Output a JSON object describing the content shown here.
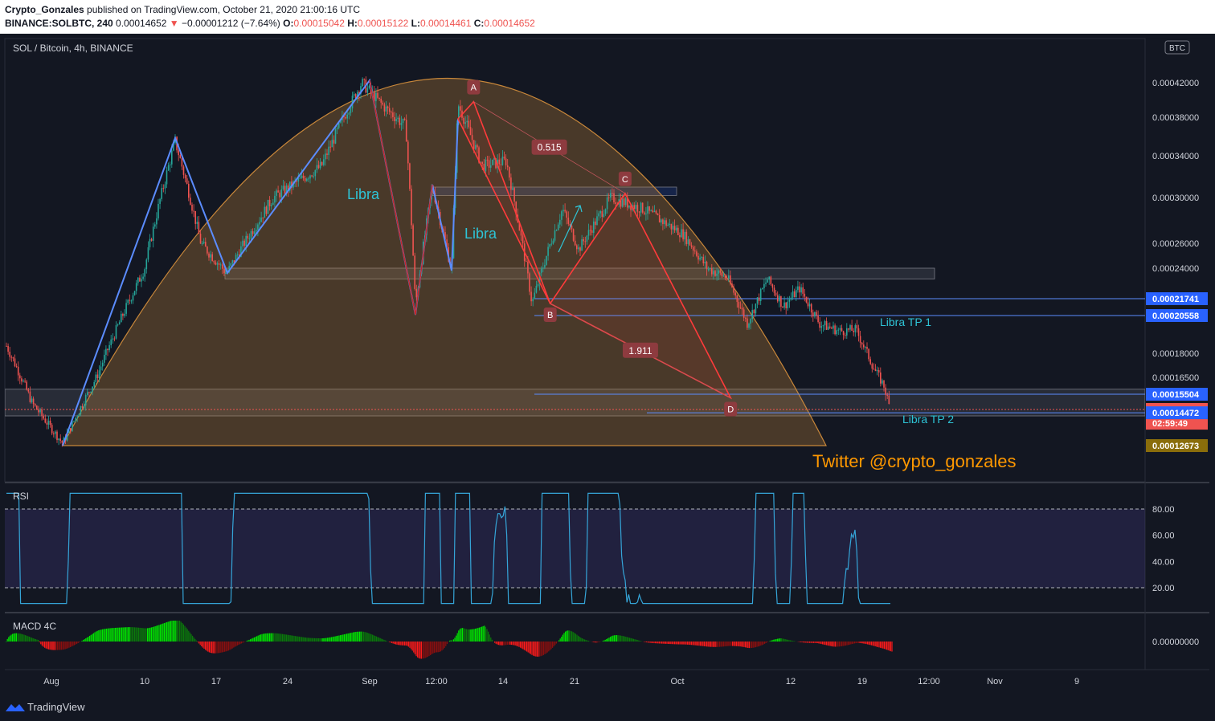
{
  "header": {
    "author": "Crypto_Gonzales",
    "published": "published on TradingView.com, October 21, 2020 21:00:16 UTC",
    "symbol": "BINANCE:SOLBTC, 240",
    "last": "0.00014652",
    "change_arrow": "▼",
    "change": "−0.00001212 (−7.64%)",
    "o_label": "O:",
    "o_value": "0.00015042",
    "h_label": "H:",
    "h_value": "0.00015122",
    "l_label": "L:",
    "l_value": "0.00014461",
    "c_label": "C:",
    "c_value": "0.00014652"
  },
  "footer": {
    "brand": "TradingView"
  },
  "colors": {
    "bg": "#131722",
    "up": "#26a69a",
    "down": "#ef5350",
    "pattern": "#5b8cff",
    "bat": "#ff3b3b",
    "arc": "#c8873a",
    "accent_text": "#2ec4d6"
  },
  "chart_data": {
    "type": "candlestick",
    "pane_title": "SOL / Bitcoin, 4h, BINANCE",
    "currency_badge": "BTC",
    "x_ticks": [
      "Aug",
      "10",
      "17",
      "24",
      "Sep",
      "12:00",
      "14",
      "21",
      "Oct",
      "12",
      "19",
      "12:00",
      "Nov",
      "9"
    ],
    "y_ticks": [
      "0.00042000",
      "0.00038000",
      "0.00034000",
      "0.00030000",
      "0.00026000",
      "0.00024000",
      "0.00018000",
      "0.00016500"
    ],
    "y_range": [
      0.000126,
      0.000462
    ],
    "price_labels": [
      {
        "text": "0.00021741",
        "price": 0.00021741,
        "kind": "blue"
      },
      {
        "text": "0.00020558",
        "price": 0.00020558,
        "kind": "blue"
      },
      {
        "text": "0.00015504",
        "price": 0.00015504,
        "kind": "blue"
      },
      {
        "text": "0.00014652",
        "price": 0.00014652,
        "kind": "red"
      },
      {
        "text": "02:59:49",
        "price": 0.000139,
        "kind": "red"
      },
      {
        "text": "0.00014472",
        "price": 0.00014472,
        "kind": "blue"
      },
      {
        "text": "0.00012673",
        "price": 0.00012673,
        "kind": "gold"
      }
    ],
    "pattern_points": [
      {
        "label": "A",
        "date": "2020-09-11 08:00",
        "price": 0.000398
      },
      {
        "label": "B",
        "date": "2020-09-18 20:00",
        "price": 0.000214
      },
      {
        "label": "C",
        "date": "2020-09-26 04:00",
        "price": 0.000304
      },
      {
        "label": "D",
        "date": "2020-10-06 12:00",
        "price": 0.000153
      }
    ],
    "fib_ratios": [
      {
        "text": "0.515",
        "between": "AC"
      },
      {
        "text": "1.911",
        "between": "BD"
      }
    ],
    "text_annotations": [
      "Libra",
      "Libra",
      "Libra TP 1",
      "Libra TP 2",
      "Twitter  @crypto_gonzales"
    ],
    "support_zones": [
      {
        "from": 0.000143,
        "to": 0.000158
      },
      {
        "from": 0.000232,
        "to": 0.00024
      },
      {
        "from": 0.000302,
        "to": 0.00031
      }
    ],
    "rsi": {
      "title": "RSI",
      "levels": [
        80,
        20
      ],
      "tick_labels": [
        "80.00",
        "60.00",
        "40.00",
        "20.00"
      ]
    },
    "macd": {
      "title": "MACD 4C",
      "tick_labels": [
        "0.00000000"
      ]
    }
  }
}
